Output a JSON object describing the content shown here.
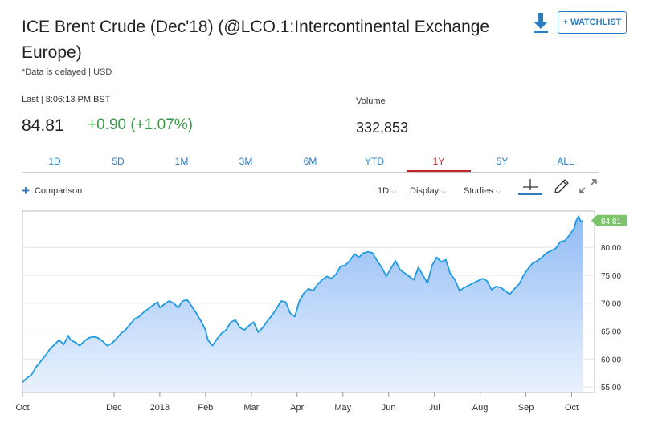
{
  "header": {
    "title": "ICE Brent Crude (Dec'18) (@LCO.1:Intercontinental Exchange Europe)",
    "subtitle": "*Data is delayed | USD",
    "watchlist_label": "+ WATCHLIST",
    "download_icon": "download-icon"
  },
  "quote": {
    "last_label": "Last | 8:06:13 PM BST",
    "price": "84.81",
    "change": "+0.90 (+1.07%)",
    "volume_label": "Volume",
    "volume": "332,853"
  },
  "colors": {
    "accent": "#2b7dc0",
    "positive": "#3a9b46",
    "active_tab": "#c0272d",
    "line": "#1f9be0",
    "fill_top": "#8ab7f5",
    "badge": "#7cc36b"
  },
  "tabs": [
    {
      "label": "1D",
      "active": false
    },
    {
      "label": "5D",
      "active": false
    },
    {
      "label": "1M",
      "active": false
    },
    {
      "label": "3M",
      "active": false
    },
    {
      "label": "6M",
      "active": false
    },
    {
      "label": "YTD",
      "active": false
    },
    {
      "label": "1Y",
      "active": true
    },
    {
      "label": "5Y",
      "active": false
    },
    {
      "label": "ALL",
      "active": false
    }
  ],
  "toolbar": {
    "comparison_label": "Comparison",
    "interval_label": "1D",
    "display_label": "Display",
    "studies_label": "Studies",
    "icons": [
      "crosshair-icon",
      "pencil-icon",
      "expand-icon"
    ]
  },
  "chart_data": {
    "type": "area",
    "x_ticks": [
      {
        "label": "Oct",
        "t": 0.0
      },
      {
        "label": "Dec",
        "t": 2.0
      },
      {
        "label": "2018",
        "t": 3.0
      },
      {
        "label": "Feb",
        "t": 4.0
      },
      {
        "label": "Mar",
        "t": 5.0
      },
      {
        "label": "Apr",
        "t": 6.0
      },
      {
        "label": "May",
        "t": 7.0
      },
      {
        "label": "Jun",
        "t": 8.0
      },
      {
        "label": "Jul",
        "t": 9.0
      },
      {
        "label": "Aug",
        "t": 10.0
      },
      {
        "label": "Sep",
        "t": 11.0
      },
      {
        "label": "Oct",
        "t": 12.0
      }
    ],
    "x_range": [
      0.0,
      12.5
    ],
    "y_ticks": [
      55,
      60,
      65,
      70,
      75,
      80
    ],
    "ylim": [
      54,
      86.5
    ],
    "last_value_label": "84.81",
    "last_value": 84.81,
    "series": [
      {
        "x": [
          0.0,
          0.1,
          0.2,
          0.3,
          0.4,
          0.5,
          0.6,
          0.7,
          0.8,
          0.9,
          1.0,
          1.05,
          1.15,
          1.25,
          1.35,
          1.45,
          1.55,
          1.65,
          1.75,
          1.85,
          1.95,
          2.05,
          2.15,
          2.25,
          2.35,
          2.45,
          2.55,
          2.65,
          2.75,
          2.85,
          2.95,
          3.0,
          3.1,
          3.2,
          3.3,
          3.4,
          3.5,
          3.6,
          3.7,
          3.8,
          3.9,
          4.0,
          4.05,
          4.15,
          4.25,
          4.35,
          4.45,
          4.55,
          4.65,
          4.75,
          4.85,
          4.95,
          5.05,
          5.15,
          5.25,
          5.35,
          5.45,
          5.55,
          5.65,
          5.75,
          5.85,
          5.95,
          6.05,
          6.15,
          6.25,
          6.35,
          6.45,
          6.55,
          6.65,
          6.75,
          6.85,
          6.95,
          7.05,
          7.15,
          7.25,
          7.35,
          7.45,
          7.55,
          7.65,
          7.75,
          7.85,
          7.95,
          8.05,
          8.15,
          8.25,
          8.35,
          8.45,
          8.55,
          8.65,
          8.75,
          8.85,
          8.95,
          9.05,
          9.15,
          9.25,
          9.35,
          9.45,
          9.55,
          9.65,
          9.75,
          9.85,
          9.95,
          10.05,
          10.15,
          10.25,
          10.35,
          10.45,
          10.55,
          10.65,
          10.75,
          10.85,
          10.95,
          11.05,
          11.15,
          11.25,
          11.35,
          11.45,
          11.55,
          11.65,
          11.75,
          11.85,
          11.95,
          12.05,
          12.1,
          12.15,
          12.2,
          12.25
        ],
        "y": [
          55.8,
          56.6,
          57.2,
          58.6,
          59.6,
          60.6,
          61.8,
          62.6,
          63.4,
          62.6,
          64.2,
          63.4,
          63.0,
          62.4,
          63.2,
          63.8,
          64.0,
          63.8,
          63.2,
          62.4,
          62.8,
          63.6,
          64.6,
          65.2,
          66.2,
          67.2,
          67.6,
          68.4,
          69.0,
          69.6,
          70.2,
          69.2,
          69.8,
          70.4,
          70.0,
          69.2,
          70.4,
          70.6,
          69.4,
          68.2,
          66.8,
          65.2,
          63.4,
          62.4,
          63.6,
          64.6,
          65.2,
          66.6,
          67.0,
          65.6,
          65.2,
          66.0,
          66.6,
          64.8,
          65.6,
          66.8,
          67.8,
          69.0,
          70.4,
          70.2,
          68.2,
          67.6,
          70.4,
          71.8,
          72.6,
          72.2,
          73.4,
          74.2,
          74.8,
          74.4,
          75.2,
          76.6,
          76.8,
          77.6,
          78.8,
          78.2,
          79.0,
          79.2,
          79.0,
          77.6,
          76.4,
          74.8,
          76.2,
          77.6,
          76.0,
          75.4,
          74.8,
          74.2,
          76.4,
          75.0,
          73.6,
          76.8,
          78.2,
          77.4,
          77.8,
          75.2,
          74.2,
          72.2,
          72.8,
          73.2,
          73.6,
          74.0,
          74.4,
          74.0,
          72.4,
          73.0,
          72.8,
          72.2,
          71.6,
          72.6,
          73.4,
          75.0,
          76.2,
          77.2,
          77.6,
          78.2,
          79.0,
          79.4,
          79.8,
          81.0,
          81.2,
          82.2,
          83.4,
          84.8,
          85.6,
          84.6,
          84.81
        ]
      }
    ]
  }
}
